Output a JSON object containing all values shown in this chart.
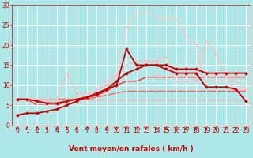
{
  "background_color": "#aee8e8",
  "grid_color": "#ffffff",
  "xlabel": "Vent moyen/en rafales ( km/h )",
  "xlabel_color": "#cc0000",
  "xlabel_fontsize": 6.5,
  "tick_color": "#cc0000",
  "tick_fontsize": 5.5,
  "xlim": [
    -0.5,
    23.5
  ],
  "ylim": [
    0,
    30
  ],
  "yticks": [
    0,
    5,
    10,
    15,
    20,
    25,
    30
  ],
  "xticks": [
    0,
    1,
    2,
    3,
    4,
    5,
    6,
    7,
    8,
    9,
    10,
    11,
    12,
    13,
    14,
    15,
    16,
    17,
    18,
    19,
    20,
    21,
    22,
    23
  ],
  "series": [
    {
      "x": [
        0,
        1,
        2,
        3,
        4,
        5,
        6,
        7,
        8,
        9,
        10,
        11,
        12,
        13,
        14,
        15,
        16,
        17,
        18,
        19,
        20,
        21,
        22,
        23
      ],
      "y": [
        6.5,
        6.5,
        6.5,
        6.5,
        6.5,
        6.5,
        6.5,
        6.5,
        6.5,
        6.5,
        6.5,
        6.5,
        6.5,
        6.5,
        6.5,
        6.5,
        6.5,
        6.5,
        6.5,
        6.5,
        6.5,
        6.5,
        6.5,
        6.5
      ],
      "color": "#ffaaaa",
      "lw": 1.0,
      "marker": null,
      "zorder": 1
    },
    {
      "x": [
        0,
        1,
        2,
        3,
        4,
        5,
        6,
        7,
        8,
        9,
        10,
        11,
        12,
        13,
        14,
        15,
        16,
        17,
        18,
        19,
        20,
        21,
        22,
        23
      ],
      "y": [
        6.5,
        6.5,
        6.5,
        6.5,
        6.5,
        6.5,
        6.5,
        6.5,
        7,
        7.5,
        8,
        8.5,
        8.5,
        8.5,
        8.5,
        8.5,
        8.5,
        8.5,
        8.5,
        8.5,
        8.5,
        8.5,
        8.5,
        8.5
      ],
      "color": "#ff6666",
      "lw": 1.0,
      "marker": null,
      "zorder": 1
    },
    {
      "x": [
        0,
        1,
        2,
        3,
        4,
        5,
        6,
        7,
        8,
        9,
        10,
        11,
        12,
        13,
        14,
        15,
        16,
        17,
        18,
        19,
        20,
        21,
        22,
        23
      ],
      "y": [
        6.5,
        6.5,
        5,
        5,
        5,
        6,
        6.5,
        7,
        7.5,
        8.5,
        10,
        11,
        11,
        12,
        12,
        12,
        12,
        12,
        12,
        12,
        12,
        12,
        12,
        12
      ],
      "color": "#ff3333",
      "lw": 1.0,
      "marker": null,
      "zorder": 1
    },
    {
      "x": [
        0,
        1,
        2,
        3,
        4,
        5,
        6,
        7,
        8,
        9,
        10,
        11,
        12,
        13,
        14,
        15,
        16,
        17,
        18,
        19,
        20,
        21,
        22,
        23
      ],
      "y": [
        6.5,
        6.5,
        6,
        5.5,
        5.5,
        6,
        6.5,
        7,
        8,
        9,
        11,
        13,
        14,
        15,
        15,
        15,
        14,
        14,
        14,
        13,
        13,
        13,
        13,
        13
      ],
      "color": "#cc0000",
      "lw": 1.3,
      "marker": "D",
      "markersize": 2.0,
      "zorder": 3
    },
    {
      "x": [
        0,
        1,
        2,
        3,
        4,
        5,
        6,
        7,
        8,
        9,
        10,
        11,
        12,
        13,
        14,
        15,
        16,
        17,
        18,
        19,
        20,
        21,
        22,
        23
      ],
      "y": [
        2.5,
        3,
        3,
        3.5,
        4,
        5,
        6,
        7,
        7.5,
        9,
        10,
        19,
        15,
        15,
        15,
        14,
        13,
        13,
        13,
        9.5,
        9.5,
        9.5,
        9,
        6
      ],
      "color": "#cc0000",
      "lw": 1.3,
      "marker": "D",
      "markersize": 2.0,
      "zorder": 3
    },
    {
      "x": [
        0,
        1,
        2,
        3,
        4,
        5,
        6,
        7,
        8,
        9,
        10,
        11,
        12,
        13,
        14,
        15,
        16,
        17,
        18,
        19,
        20,
        21,
        22,
        23
      ],
      "y": [
        6.5,
        6.5,
        6.5,
        6.5,
        6.5,
        13,
        8,
        8,
        9,
        10,
        12.5,
        15,
        16,
        16,
        16,
        17,
        11,
        11,
        11,
        21,
        18,
        12,
        11,
        9
      ],
      "color": "#ffbbbb",
      "lw": 0.9,
      "marker": "o",
      "markersize": 1.8,
      "zorder": 2
    },
    {
      "x": [
        0,
        1,
        2,
        3,
        4,
        5,
        6,
        7,
        8,
        9,
        10,
        11,
        12,
        13,
        14,
        15,
        16,
        17,
        18,
        19,
        20,
        21,
        22,
        23
      ],
      "y": [
        6.5,
        6.5,
        6,
        5.5,
        5.5,
        6,
        6.5,
        8,
        9,
        11,
        13,
        24.5,
        28,
        28,
        27,
        26.5,
        26.5,
        22,
        20,
        11,
        11,
        11,
        9,
        9
      ],
      "color": "#ffcccc",
      "lw": 0.9,
      "marker": "o",
      "markersize": 1.8,
      "zorder": 2
    }
  ],
  "arrow_color": "#cc0000"
}
